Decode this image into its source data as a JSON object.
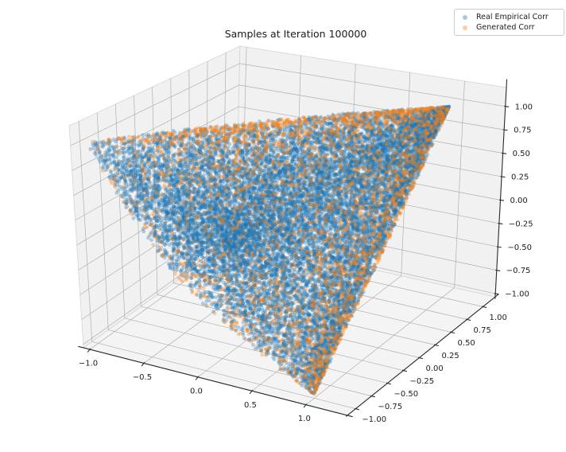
{
  "title": "Samples at Iteration 100000",
  "legend": {
    "items": [
      {
        "label": "Real Empirical Corr",
        "color": "#1f77b4",
        "marker_rgba": "rgba(31,119,180,0.4)"
      },
      {
        "label": "Generated Corr",
        "color": "#ff7f0e",
        "marker_rgba": "rgba(255,127,14,0.4)"
      }
    ]
  },
  "chart_data": {
    "type": "scatter",
    "projection": "3d",
    "title": "Samples at Iteration 100000",
    "legend_position": "upper right",
    "grid": true,
    "series": [
      {
        "name": "Real Empirical Corr",
        "color": "#1f77b4",
        "marker": "circle",
        "marker_alpha": 0.32,
        "marker_size_px": 5,
        "n_points_rendered": 14000,
        "distribution": "triples (r12,r13,r23) of valid 3x3 correlation matrices filling the elliptope; densest toward the (1,1,1) vertex at the upper right, sparse tails toward (-1,-1,1) left and (1,-1,-1) bottom"
      },
      {
        "name": "Generated Corr",
        "color": "#ff7f0e",
        "marker": "circle",
        "marker_alpha": 0.36,
        "marker_size_px": 4.5,
        "n_points_rendered": 4200,
        "distribution": "generated correlation triples hugging the elliptope boundary; orange fringe most visible along the right silhouette edge between (1,1,1) and (1,-1,-1), speckled elsewhere among the blue cloud"
      }
    ],
    "axes": {
      "x": {
        "range": [
          -1,
          1
        ],
        "ticks": [
          -1.0,
          -0.5,
          0.0,
          0.5,
          1.0
        ],
        "tick_labels": [
          "−1.0",
          "−0.5",
          "0.0",
          "0.5",
          "1.0"
        ]
      },
      "y": {
        "range": [
          -1,
          1
        ],
        "ticks": [
          -1.0,
          -0.75,
          -0.5,
          -0.25,
          0.0,
          0.25,
          0.5,
          0.75,
          1.0
        ],
        "tick_labels": [
          "−1.00",
          "−0.75",
          "−0.50",
          "−0.25",
          "0.00",
          "0.25",
          "0.50",
          "0.75",
          "1.00"
        ]
      },
      "z": {
        "range": [
          -1,
          1
        ],
        "ticks": [
          -1.0,
          -0.75,
          -0.5,
          -0.25,
          0.0,
          0.25,
          0.5,
          0.75,
          1.0
        ],
        "tick_labels": [
          "−1.00",
          "−0.75",
          "−0.50",
          "−0.25",
          "0.00",
          "0.25",
          "0.50",
          "0.75",
          "1.00"
        ]
      }
    },
    "colors": {
      "background": "#ffffff",
      "pane": "#f1f1f2",
      "floor_pane": "#f4f4f4",
      "grid_line": "#b0b0b0",
      "pane_edge": "#d5d5d5",
      "axis_line": "#2a2a2a",
      "tick_text": "#202020"
    }
  }
}
